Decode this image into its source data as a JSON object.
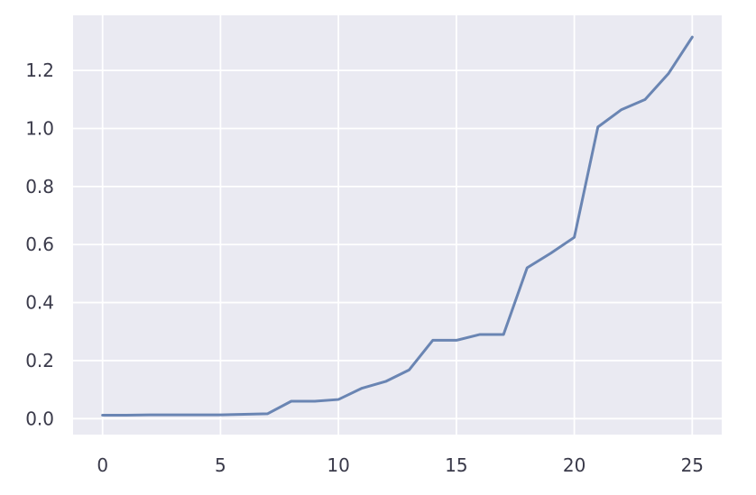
{
  "chart_data": {
    "type": "line",
    "title": "",
    "xlabel": "",
    "ylabel": "",
    "xlim": [
      -1.25,
      26.25
    ],
    "ylim": [
      -0.055,
      1.39
    ],
    "grid": true,
    "legend": "none",
    "colors": {
      "plot_background": "#eaeaf2",
      "grid": "#ffffff",
      "line": "#6a85b3",
      "tick_text": "#3a3a4a"
    },
    "x_ticks": [
      {
        "value": 0,
        "label": "0"
      },
      {
        "value": 5,
        "label": "5"
      },
      {
        "value": 10,
        "label": "10"
      },
      {
        "value": 15,
        "label": "15"
      },
      {
        "value": 20,
        "label": "20"
      },
      {
        "value": 25,
        "label": "25"
      }
    ],
    "y_ticks": [
      {
        "value": 0.0,
        "label": "0.0"
      },
      {
        "value": 0.2,
        "label": "0.2"
      },
      {
        "value": 0.4,
        "label": "0.4"
      },
      {
        "value": 0.6,
        "label": "0.6"
      },
      {
        "value": 0.8,
        "label": "0.8"
      },
      {
        "value": 1.0,
        "label": "1.0"
      },
      {
        "value": 1.2,
        "label": "1.2"
      }
    ],
    "series": [
      {
        "x": [
          0,
          1,
          2,
          3,
          4,
          5,
          6,
          7,
          8,
          9,
          10,
          11,
          12,
          13,
          14,
          15,
          16,
          17,
          18,
          19,
          20,
          21,
          22,
          23,
          24,
          25
        ],
        "values": [
          0.012,
          0.012,
          0.013,
          0.013,
          0.013,
          0.013,
          0.015,
          0.017,
          0.06,
          0.06,
          0.066,
          0.105,
          0.128,
          0.168,
          0.27,
          0.27,
          0.29,
          0.29,
          0.52,
          0.57,
          0.625,
          1.005,
          1.065,
          1.1,
          1.19,
          1.315
        ]
      }
    ]
  }
}
